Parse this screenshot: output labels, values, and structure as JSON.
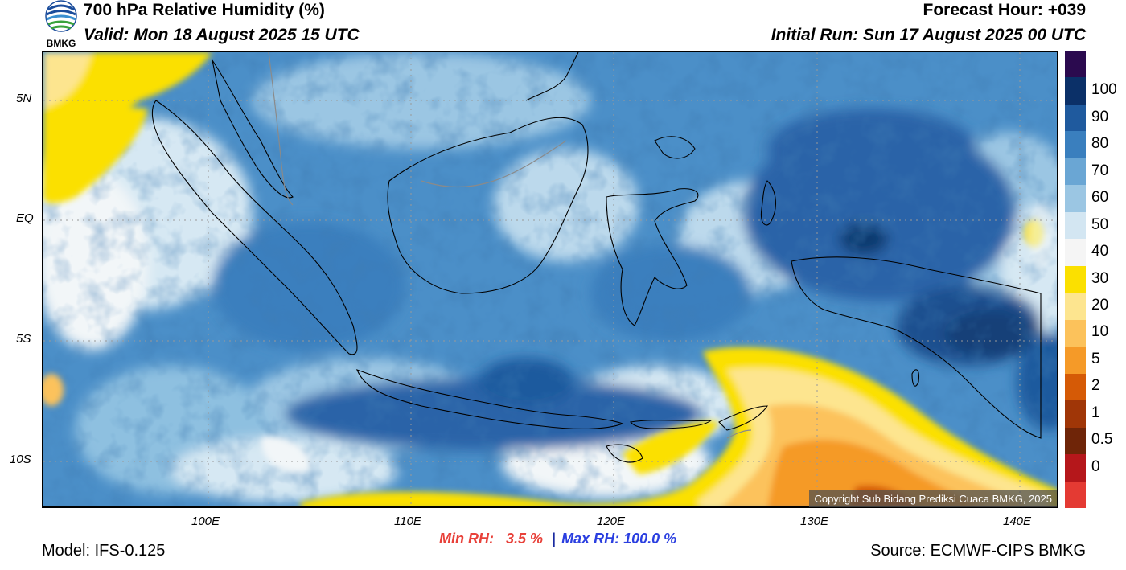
{
  "header": {
    "title": "700 hPa Relative Humidity (%)",
    "valid": "Valid: Mon 18 August 2025 15 UTC",
    "forecast_hour": "Forecast Hour: +039",
    "initial_run": "Initial Run: Sun 17 August 2025 00 UTC"
  },
  "logo": {
    "text": "BMKG",
    "icon": "bmkg-logo-icon"
  },
  "map": {
    "lat_labels": [
      "5N",
      "EQ",
      "5S",
      "10S"
    ],
    "lon_labels": [
      "100E",
      "110E",
      "120E",
      "130E",
      "140E"
    ],
    "copyright": "Copyright Sub Bidang Prediksi Cuaca BMKG, 2025"
  },
  "colorbar": {
    "labels": [
      "100",
      "90",
      "80",
      "70",
      "60",
      "50",
      "40",
      "30",
      "20",
      "10",
      "5",
      "2",
      "1",
      "0.5",
      "0"
    ],
    "colors": [
      "#2b0a4f",
      "#0b3068",
      "#1f5a9e",
      "#3a7fbe",
      "#6aa6d4",
      "#9bc6e3",
      "#d3e6f2",
      "#f5f5f5",
      "#fbe000",
      "#fde58f",
      "#fcc25b",
      "#f59a28",
      "#d55a06",
      "#a03607",
      "#6f2508",
      "#b5171b",
      "#e43a33"
    ]
  },
  "stats": {
    "min_label": "Min RH:",
    "min_value": "3.5 %",
    "separator": "|",
    "max_text": "Max RH: 100.0 %"
  },
  "footer": {
    "model": "Model: IFS-0.125",
    "source": "Source: ECMWF-CIPS BMKG"
  }
}
